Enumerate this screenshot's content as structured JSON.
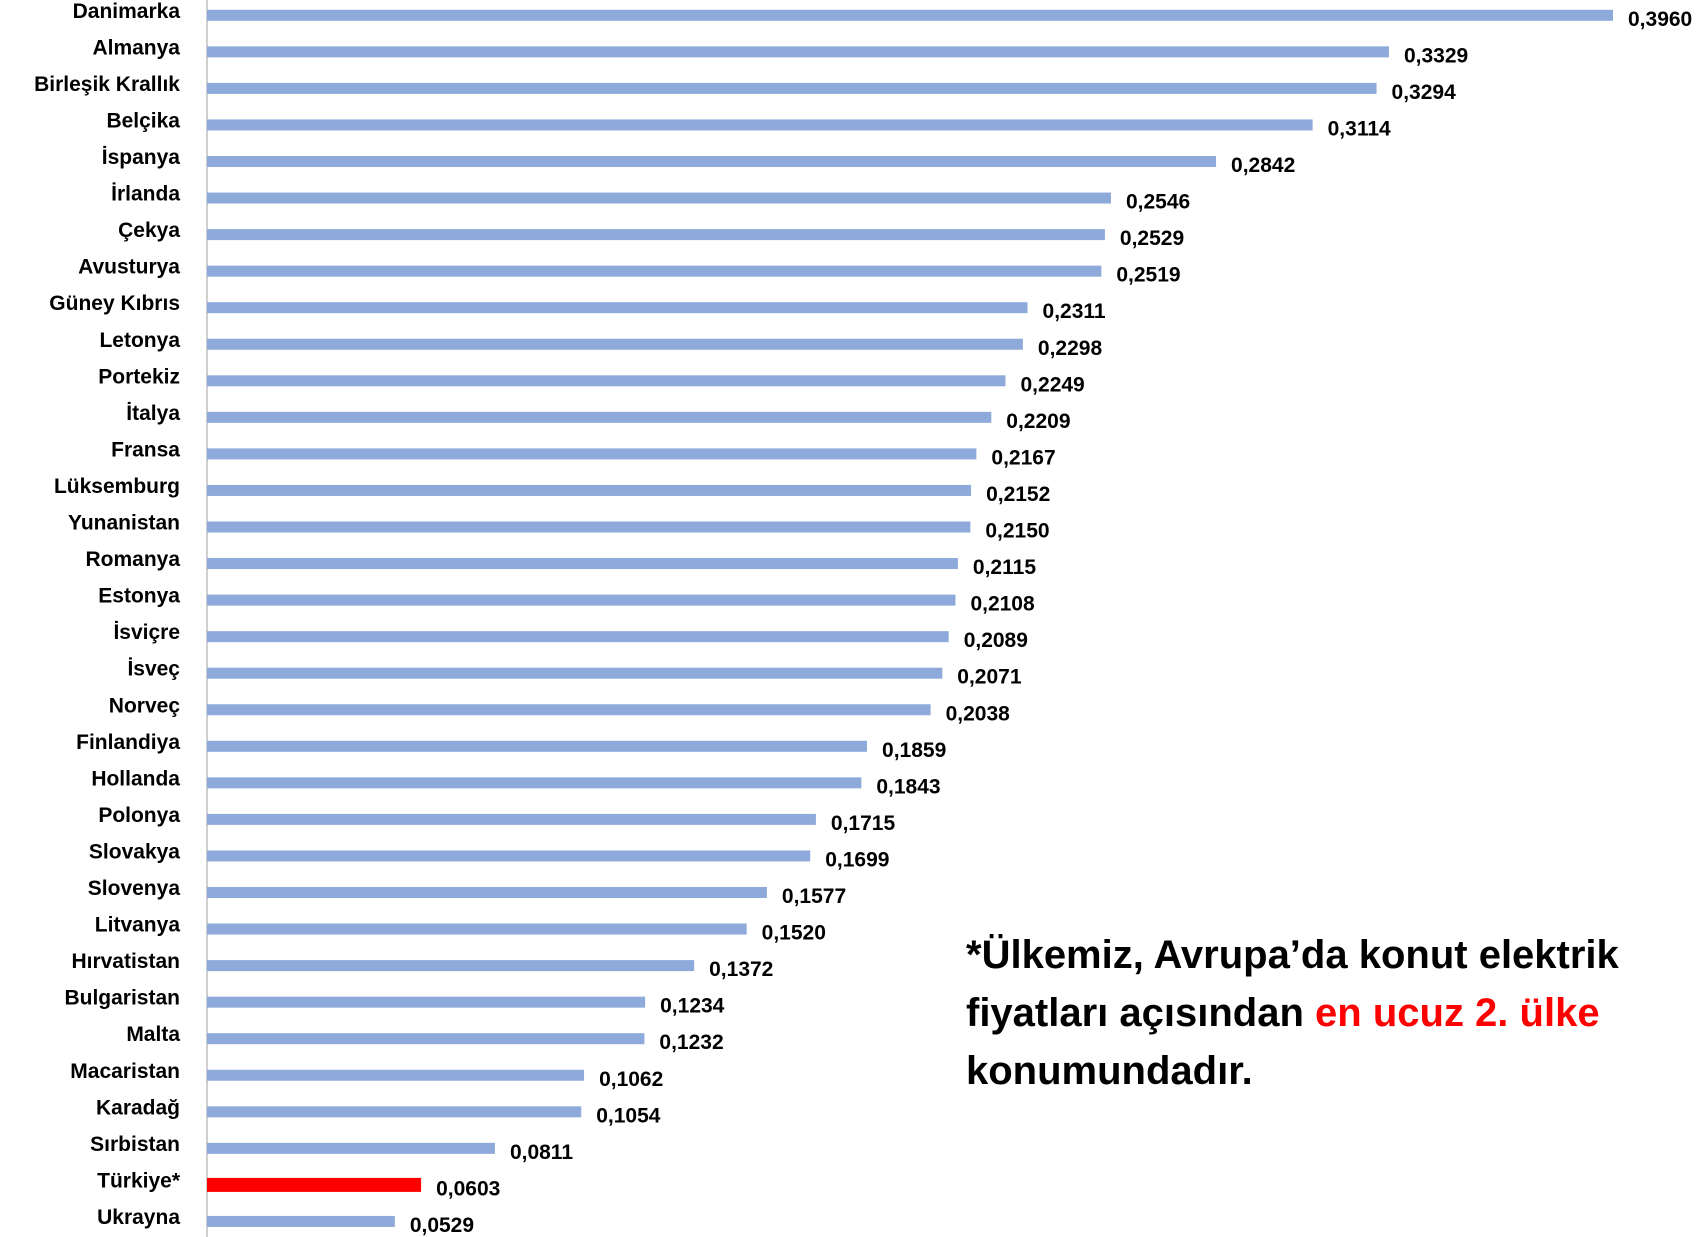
{
  "chart_data": {
    "type": "barh",
    "categories": [
      "Danimarka",
      "Almanya",
      "Birleşik Krallık",
      "Belçika",
      "İspanya",
      "İrlanda",
      "Çekya",
      "Avusturya",
      "Güney Kıbrıs",
      "Letonya",
      "Portekiz",
      "İtalya",
      "Fransa",
      "Lüksemburg",
      "Yunanistan",
      "Romanya",
      "Estonya",
      "İsviçre",
      "İsveç",
      "Norveç",
      "Finlandiya",
      "Hollanda",
      "Polonya",
      "Slovakya",
      "Slovenya",
      "Litvanya",
      "Hırvatistan",
      "Bulgaristan",
      "Malta",
      "Macaristan",
      "Karadağ",
      "Sırbistan",
      "Türkiye*",
      "Ukrayna"
    ],
    "values": [
      0.396,
      0.3329,
      0.3294,
      0.3114,
      0.2842,
      0.2546,
      0.2529,
      0.2519,
      0.2311,
      0.2298,
      0.2249,
      0.2209,
      0.2167,
      0.2152,
      0.215,
      0.2115,
      0.2108,
      0.2089,
      0.2071,
      0.2038,
      0.1859,
      0.1843,
      0.1715,
      0.1699,
      0.1577,
      0.152,
      0.1372,
      0.1234,
      0.1232,
      0.1062,
      0.1054,
      0.0811,
      0.0603,
      0.0529
    ],
    "value_labels": [
      "0,3960",
      "0,3329",
      "0,3294",
      "0,3114",
      "0,2842",
      "0,2546",
      "0,2529",
      "0,2519",
      "0,2311",
      "0,2298",
      "0,2249",
      "0,2209",
      "0,2167",
      "0,2152",
      "0,2150",
      "0,2115",
      "0,2108",
      "0,2089",
      "0,2071",
      "0,2038",
      "0,1859",
      "0,1843",
      "0,1715",
      "0,1699",
      "0,1577",
      "0,1520",
      "0,1372",
      "0,1234",
      "0,1232",
      "0,1062",
      "0,1054",
      "0,0811",
      "0,0603",
      "0,0529"
    ],
    "color": "#8eaadb",
    "highlight_color": "#ff0000",
    "highlight": [
      32
    ],
    "annotation": {
      "lines": [
        [
          "*Ülkemiz, Avrupa’da konut elektrik"
        ],
        [
          "fiyatları açısından ",
          "en ucuz 2. ülke"
        ],
        [
          "konumundadır."
        ]
      ],
      "highlight_color": "#ff0000"
    }
  }
}
